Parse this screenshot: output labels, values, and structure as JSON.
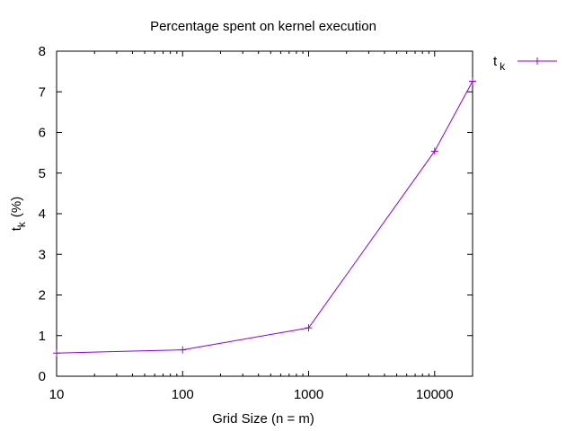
{
  "chart_data": {
    "type": "line",
    "title": "Percentage spent on kernel execution",
    "xlabel": "Grid Size (n = m)",
    "ylabel_main": "t",
    "ylabel_sub": "k",
    "ylabel_unit": "(%)",
    "x_scale": "log",
    "xlim": [
      10,
      20000
    ],
    "ylim": [
      0,
      8
    ],
    "x_ticks": [
      10,
      100,
      1000,
      10000
    ],
    "x_tick_labels": [
      "10",
      "100",
      "1000",
      "10000"
    ],
    "y_ticks": [
      0,
      1,
      2,
      3,
      4,
      5,
      6,
      7,
      8
    ],
    "y_tick_labels": [
      "0",
      "1",
      "2",
      "3",
      "4",
      "5",
      "6",
      "7",
      "8"
    ],
    "grid": false,
    "legend_position": "outside-top-right",
    "series": [
      {
        "name_main": "t",
        "name_sub": "k",
        "color": "#9400d3",
        "marker": "plus",
        "x": [
          10,
          100,
          1000,
          10000,
          20000
        ],
        "y": [
          0.57,
          0.65,
          1.19,
          5.54,
          7.26
        ]
      }
    ]
  }
}
